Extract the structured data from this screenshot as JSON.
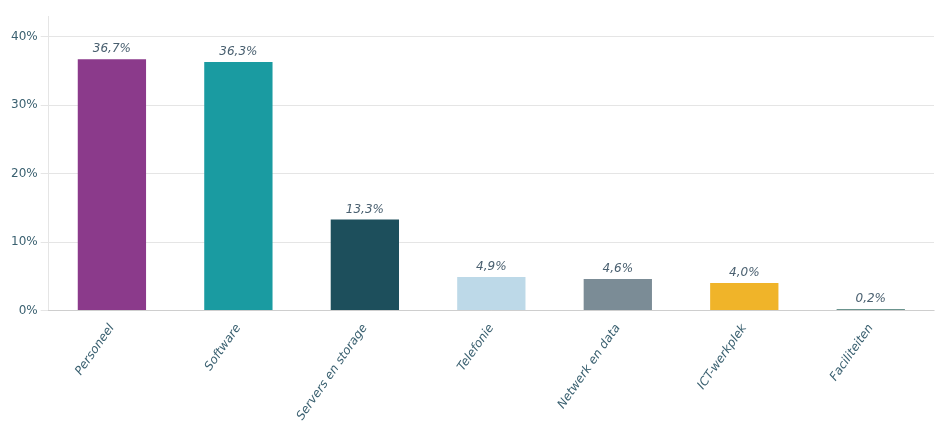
{
  "chart_data": {
    "type": "bar",
    "categories": [
      "Personeel",
      "Software",
      "Servers en storage",
      "Telefonie",
      "Netwerk en data",
      "ICT-werkplek",
      "Faciliteiten"
    ],
    "values": [
      36.7,
      36.3,
      13.3,
      4.9,
      4.6,
      4.0,
      0.2
    ],
    "value_labels": [
      "36,7%",
      "36,3%",
      "13,3%",
      "4,9%",
      "4,6%",
      "4,0%",
      "0,2%"
    ],
    "colors": [
      "#8B3A8B",
      "#1A9BA1",
      "#1D4F5C",
      "#BDD9E8",
      "#7B8C96",
      "#F0B429",
      "#3A7068"
    ],
    "ylim": [
      0,
      43
    ],
    "yticks": [
      {
        "value": 0,
        "label": "0%"
      },
      {
        "value": 10,
        "label": "10%"
      },
      {
        "value": 20,
        "label": "20%"
      },
      {
        "value": 30,
        "label": "30%"
      },
      {
        "value": 40,
        "label": "40%"
      }
    ],
    "grid": true,
    "data_labels": true
  }
}
